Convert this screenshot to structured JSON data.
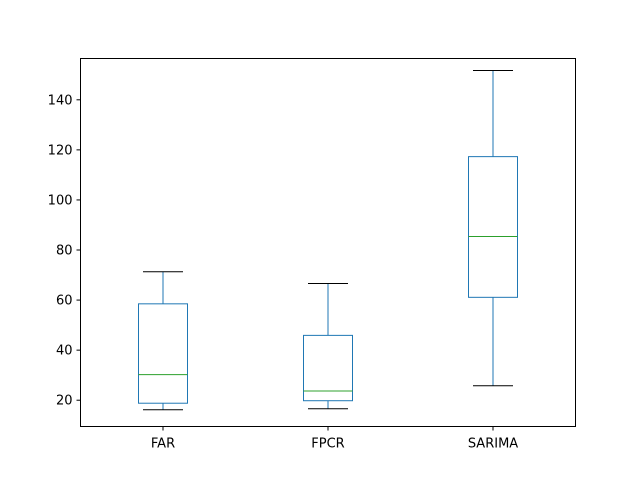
{
  "chart_data": {
    "type": "box",
    "title": "",
    "xlabel": "",
    "ylabel": "",
    "ylim": [
      9.5,
      156.5
    ],
    "yticks": [
      20,
      40,
      60,
      80,
      100,
      120,
      140
    ],
    "grid": false,
    "categories": [
      "FAR",
      "FPCR",
      "SARIMA"
    ],
    "boxes": [
      {
        "label": "FAR",
        "whisker_low": 16.2,
        "q1": 18.8,
        "median": 30.2,
        "q3": 58.5,
        "whisker_high": 71.3
      },
      {
        "label": "FPCR",
        "whisker_low": 16.6,
        "q1": 19.8,
        "median": 23.7,
        "q3": 45.9,
        "whisker_high": 66.6
      },
      {
        "label": "SARIMA",
        "whisker_low": 25.8,
        "q1": 61.1,
        "median": 85.4,
        "q3": 117.3,
        "whisker_high": 151.7
      }
    ],
    "colors": {
      "box": "#1f77b4",
      "median": "#2ca02c",
      "cap": "#000000",
      "axis": "#000000"
    }
  }
}
